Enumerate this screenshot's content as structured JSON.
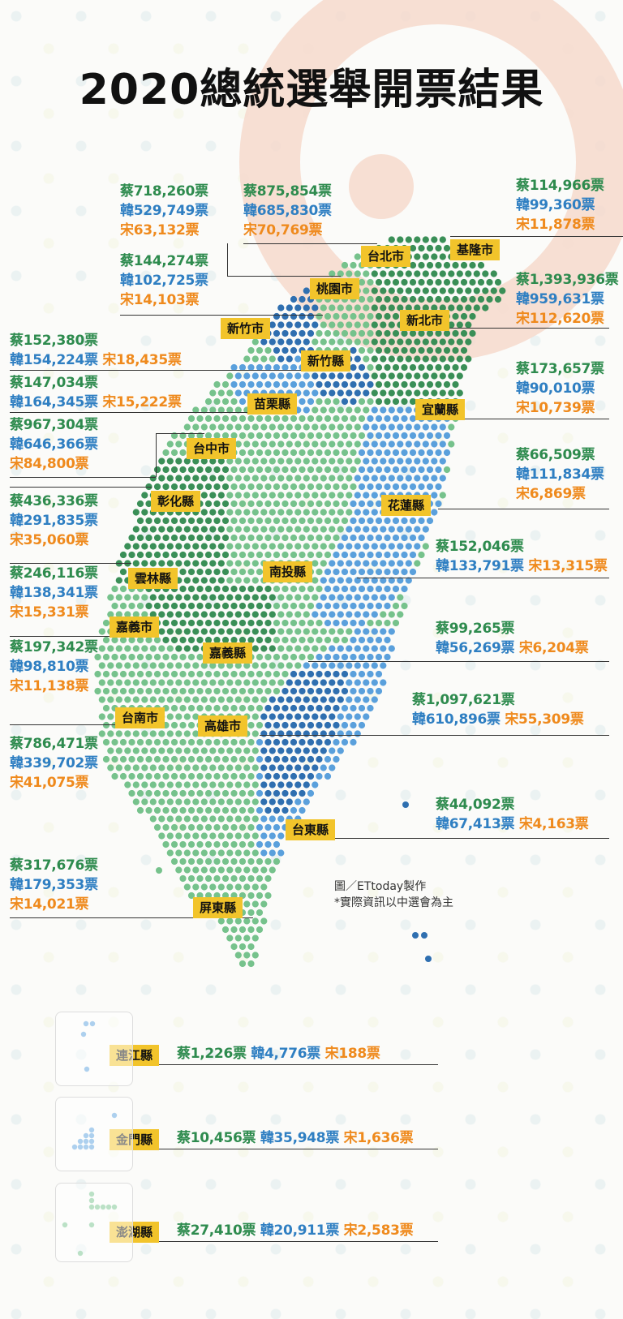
{
  "title": "2020總統選舉開票結果",
  "credit": {
    "line1": "圖／ETtoday製作",
    "line2": "*實際資訊以中選會為主"
  },
  "colors": {
    "tsai": "#2e8b4e",
    "han": "#2f7fc2",
    "soong": "#ef8a1d",
    "label_bg": "#f2c42b",
    "map_green_light": "#76c28c",
    "map_green_dark": "#3a8f57",
    "map_blue_light": "#5aa0dc",
    "map_blue_dark": "#2f6fb0"
  },
  "legend_marks": {
    "tsai": "蔡",
    "han": "韓",
    "soong": "宋",
    "unit": "票"
  },
  "regions": [
    {
      "name": "基隆市",
      "tsai": "蔡114,966票",
      "han": "韓99,360票",
      "soong": "宋11,878票"
    },
    {
      "name": "台北市",
      "tsai": "蔡875,854票",
      "han": "韓685,830票",
      "soong": "宋70,769票"
    },
    {
      "name": "新北市",
      "tsai": "蔡1,393,936票",
      "han": "韓959,631票",
      "soong": "宋112,620票"
    },
    {
      "name": "桃園市",
      "tsai": "蔡718,260票",
      "han": "韓529,749票",
      "soong": "宋63,132票"
    },
    {
      "name": "新竹市",
      "tsai": "蔡144,274票",
      "han": "韓102,725票",
      "soong": "宋14,103票"
    },
    {
      "name": "新竹縣",
      "tsai": "蔡152,380票",
      "han": "韓154,224票",
      "soong": "宋18,435票"
    },
    {
      "name": "宜蘭縣",
      "tsai": "蔡173,657票",
      "han": "韓90,010票",
      "soong": "宋10,739票"
    },
    {
      "name": "苗栗縣",
      "tsai": "蔡147,034票",
      "han": "韓164,345票",
      "soong": "宋15,222票"
    },
    {
      "name": "台中市",
      "tsai": "蔡967,304票",
      "han": "韓646,366票",
      "soong": "宋84,800票"
    },
    {
      "name": "花蓮縣",
      "tsai": "蔡66,509票",
      "han": "韓111,834票",
      "soong": "宋6,869票"
    },
    {
      "name": "彰化縣",
      "tsai": "蔡436,336票",
      "han": "韓291,835票",
      "soong": "宋35,060票"
    },
    {
      "name": "南投縣",
      "tsai": "蔡152,046票",
      "han": "韓133,791票",
      "soong": "宋13,315票"
    },
    {
      "name": "雲林縣",
      "tsai": "蔡246,116票",
      "han": "韓138,341票",
      "soong": "宋15,331票"
    },
    {
      "name": "嘉義市",
      "tsai": "蔡197,342票",
      "han": "韓98,810票",
      "soong": "宋11,138票"
    },
    {
      "name": "嘉義縣",
      "tsai": "蔡99,265票",
      "han": "韓56,269票",
      "soong": "宋6,204票"
    },
    {
      "name": "台南市",
      "tsai": "蔡786,471票",
      "han": "韓339,702票",
      "soong": "宋41,075票"
    },
    {
      "name": "高雄市",
      "tsai": "蔡1,097,621票",
      "han": "韓610,896票",
      "soong": "宋55,309票"
    },
    {
      "name": "台東縣",
      "tsai": "蔡44,092票",
      "han": "韓67,413票",
      "soong": "宋4,163票"
    },
    {
      "name": "屏東縣",
      "tsai": "蔡317,676票",
      "han": "韓179,353票",
      "soong": "宋14,021票"
    },
    {
      "name": "連江縣",
      "tsai": "蔡1,226票",
      "han": "韓4,776票",
      "soong": "宋188票"
    },
    {
      "name": "金門縣",
      "tsai": "蔡10,456票",
      "han": "韓35,948票",
      "soong": "宋1,636票"
    },
    {
      "name": "澎湖縣",
      "tsai": "蔡27,410票",
      "han": "韓20,911票",
      "soong": "宋2,583票"
    }
  ]
}
